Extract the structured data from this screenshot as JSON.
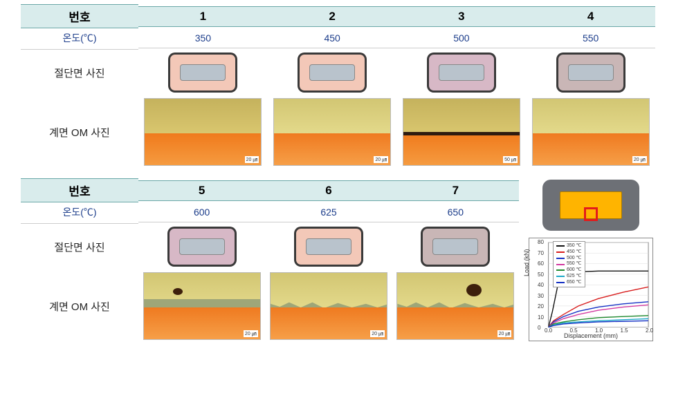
{
  "headers": {
    "col_number": "번호",
    "col_temp": "온도(℃)",
    "row_cross_section": "절단면 사진",
    "row_interface_om": "계면 OM 사진"
  },
  "top_samples": [
    {
      "num": "1",
      "temp": "350",
      "xsec_variant": "pink",
      "om_variant": "var-a",
      "om_dark": false,
      "scale": "20 ㎛"
    },
    {
      "num": "2",
      "temp": "450",
      "xsec_variant": "pink",
      "om_variant": "var-b",
      "om_dark": false,
      "scale": "20 ㎛"
    },
    {
      "num": "3",
      "temp": "500",
      "xsec_variant": "mauve",
      "om_variant": "var-a",
      "om_dark": true,
      "scale": "50 ㎛"
    },
    {
      "num": "4",
      "temp": "550",
      "xsec_variant": "grey",
      "om_variant": "var-b",
      "om_dark": false,
      "scale": "20 ㎛"
    }
  ],
  "bottom_samples": [
    {
      "num": "5",
      "temp": "600",
      "xsec_variant": "mauve",
      "om_wavy": false,
      "scale": "20 ㎛"
    },
    {
      "num": "6",
      "temp": "625",
      "xsec_variant": "pink",
      "om_wavy": true,
      "scale": "20 ㎛"
    },
    {
      "num": "7",
      "temp": "650",
      "xsec_variant": "grey",
      "om_wavy": true,
      "scale": "20 ㎛"
    }
  ],
  "schematic": {
    "outer_color": "#6d7076",
    "core_color": "#ffb400",
    "roi_color": "#e31b1b"
  },
  "chart": {
    "type": "line",
    "xlabel": "Displacement (mm)",
    "ylabel": "Load (kN)",
    "xlim": [
      0.0,
      2.0
    ],
    "ylim": [
      0,
      80
    ],
    "xtick_step": 0.5,
    "ytick_step": 10,
    "xticks": [
      "0.0",
      "0.5",
      "1.0",
      "1.5",
      "2.0"
    ],
    "yticks": [
      "0",
      "10",
      "20",
      "30",
      "40",
      "50",
      "60",
      "70",
      "80"
    ],
    "background_color": "#ffffff",
    "grid_color": "#dddddd",
    "label_fontsize": 9,
    "line_width": 1.4,
    "series": [
      {
        "label": "350 ℃",
        "color": "#111111",
        "points": [
          [
            0.0,
            0
          ],
          [
            0.08,
            15
          ],
          [
            0.18,
            38
          ],
          [
            0.3,
            50
          ],
          [
            0.5,
            52
          ],
          [
            1.0,
            53
          ],
          [
            1.5,
            53
          ],
          [
            2.0,
            53
          ]
        ]
      },
      {
        "label": "450 ℃",
        "color": "#d81e1e",
        "points": [
          [
            0.0,
            0
          ],
          [
            0.1,
            6
          ],
          [
            0.3,
            12
          ],
          [
            0.6,
            20
          ],
          [
            1.0,
            27
          ],
          [
            1.5,
            33
          ],
          [
            2.0,
            38
          ]
        ]
      },
      {
        "label": "500 ℃",
        "color": "#1430c4",
        "points": [
          [
            0.0,
            0
          ],
          [
            0.1,
            5
          ],
          [
            0.3,
            10
          ],
          [
            0.6,
            15
          ],
          [
            1.0,
            19
          ],
          [
            1.5,
            22
          ],
          [
            2.0,
            24
          ]
        ]
      },
      {
        "label": "550 ℃",
        "color": "#d23aa0",
        "points": [
          [
            0.0,
            0
          ],
          [
            0.1,
            4
          ],
          [
            0.3,
            8
          ],
          [
            0.6,
            12
          ],
          [
            1.0,
            16
          ],
          [
            1.5,
            19
          ],
          [
            2.0,
            21
          ]
        ]
      },
      {
        "label": "600 ℃",
        "color": "#1f8a2e",
        "points": [
          [
            0.0,
            0
          ],
          [
            0.1,
            3
          ],
          [
            0.3,
            5
          ],
          [
            0.6,
            7
          ],
          [
            1.0,
            9
          ],
          [
            1.5,
            10
          ],
          [
            2.0,
            11
          ]
        ]
      },
      {
        "label": "625 ℃",
        "color": "#1aa7c7",
        "points": [
          [
            0.0,
            0
          ],
          [
            0.1,
            2
          ],
          [
            0.3,
            4
          ],
          [
            0.6,
            5
          ],
          [
            1.0,
            6
          ],
          [
            1.5,
            7
          ],
          [
            2.0,
            8
          ]
        ]
      },
      {
        "label": "650 ℃",
        "color": "#1430c4",
        "points": [
          [
            0.0,
            0
          ],
          [
            0.1,
            1.5
          ],
          [
            0.3,
            3
          ],
          [
            0.6,
            4
          ],
          [
            1.0,
            5
          ],
          [
            1.5,
            5.5
          ],
          [
            2.0,
            6
          ]
        ]
      }
    ]
  }
}
